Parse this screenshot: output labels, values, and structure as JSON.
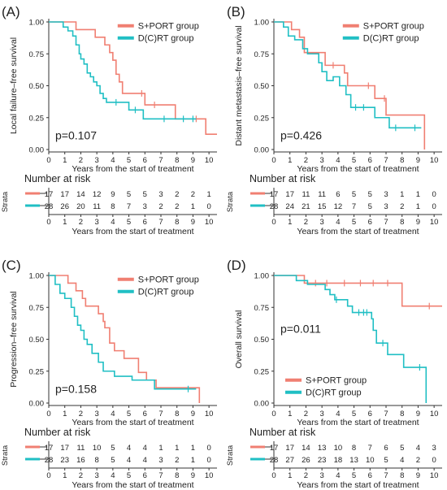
{
  "x_axis_label": "Years from the start of treatment",
  "risk_title": "Number at risk",
  "strata_label": "Strata",
  "colors": {
    "sport": "#F07F72",
    "dcrt": "#20BFC4"
  },
  "chart_data": [
    {
      "panel_label": "(A)",
      "type": "line",
      "ylabel": "Local failure–free survival",
      "pvalue": "p=0.107",
      "legend_position": "top-right",
      "xlim": [
        0,
        10
      ],
      "ylim": [
        0,
        1
      ],
      "x_ticks": [
        0,
        1,
        2,
        3,
        4,
        5,
        6,
        7,
        8,
        9,
        10
      ],
      "y_ticks": [
        "0.00",
        "0.25",
        "0.50",
        "0.75",
        "1.00"
      ],
      "series": [
        {
          "name": "S+PORT group",
          "color_key": "sport",
          "steps": [
            [
              0,
              1.0
            ],
            [
              1.7,
              0.94
            ],
            [
              2.9,
              0.88
            ],
            [
              3.5,
              0.82
            ],
            [
              3.8,
              0.76
            ],
            [
              4.0,
              0.7
            ],
            [
              4.2,
              0.59
            ],
            [
              4.4,
              0.53
            ],
            [
              4.6,
              0.44
            ],
            [
              6.0,
              0.35
            ],
            [
              7.9,
              0.24
            ],
            [
              9.8,
              0.12
            ],
            [
              10.5,
              0.12
            ]
          ],
          "censored": [
            [
              5.8,
              0.44
            ],
            [
              6.6,
              0.35
            ],
            [
              9.2,
              0.24
            ]
          ]
        },
        {
          "name": "D(C)RT group",
          "color_key": "dcrt",
          "steps": [
            [
              0,
              1.0
            ],
            [
              0.9,
              0.96
            ],
            [
              1.2,
              0.93
            ],
            [
              1.5,
              0.89
            ],
            [
              1.7,
              0.82
            ],
            [
              1.9,
              0.75
            ],
            [
              2.0,
              0.71
            ],
            [
              2.2,
              0.67
            ],
            [
              2.4,
              0.6
            ],
            [
              2.6,
              0.57
            ],
            [
              2.8,
              0.53
            ],
            [
              3.0,
              0.5
            ],
            [
              3.2,
              0.44
            ],
            [
              3.4,
              0.4
            ],
            [
              3.6,
              0.37
            ],
            [
              5.0,
              0.31
            ],
            [
              5.9,
              0.24
            ],
            [
              9.2,
              0.24
            ]
          ],
          "censored": [
            [
              4.2,
              0.37
            ],
            [
              5.4,
              0.31
            ],
            [
              7.2,
              0.24
            ],
            [
              8.4,
              0.24
            ],
            [
              9.0,
              0.24
            ]
          ]
        }
      ],
      "risk_table": {
        "x": [
          0,
          1,
          2,
          3,
          4,
          5,
          6,
          7,
          8,
          9,
          10
        ],
        "rows": [
          {
            "color_key": "sport",
            "values": [
              "17",
              "17",
              "14",
              "12",
              "9",
              "5",
              "5",
              "3",
              "2",
              "2",
              "1"
            ]
          },
          {
            "color_key": "dcrt",
            "values": [
              "28",
              "26",
              "20",
              "11",
              "8",
              "7",
              "3",
              "2",
              "2",
              "1",
              "0"
            ]
          }
        ]
      }
    },
    {
      "panel_label": "(B)",
      "type": "line",
      "ylabel": "Distant metastasis–free survival",
      "pvalue": "p=0.426",
      "legend_position": "top-right",
      "xlim": [
        0,
        10
      ],
      "ylim": [
        0,
        1
      ],
      "x_ticks": [
        0,
        1,
        2,
        3,
        4,
        5,
        6,
        7,
        8,
        9,
        10
      ],
      "y_ticks": [
        "0.00",
        "0.25",
        "0.50",
        "0.75",
        "1.00"
      ],
      "series": [
        {
          "name": "S+PORT group",
          "color_key": "sport",
          "steps": [
            [
              0,
              1.0
            ],
            [
              1.1,
              0.94
            ],
            [
              1.6,
              0.88
            ],
            [
              1.9,
              0.76
            ],
            [
              3.2,
              0.66
            ],
            [
              4.4,
              0.6
            ],
            [
              4.6,
              0.5
            ],
            [
              6.3,
              0.4
            ],
            [
              7.0,
              0.27
            ],
            [
              9.4,
              0.0
            ]
          ],
          "censored": [
            [
              3.7,
              0.66
            ],
            [
              5.9,
              0.5
            ],
            [
              6.9,
              0.4
            ]
          ]
        },
        {
          "name": "D(C)RT group",
          "color_key": "dcrt",
          "steps": [
            [
              0,
              1.0
            ],
            [
              0.6,
              0.96
            ],
            [
              0.9,
              0.89
            ],
            [
              1.3,
              0.86
            ],
            [
              1.8,
              0.79
            ],
            [
              2.1,
              0.75
            ],
            [
              2.8,
              0.68
            ],
            [
              3.0,
              0.61
            ],
            [
              3.3,
              0.54
            ],
            [
              3.7,
              0.57
            ],
            [
              4.1,
              0.5
            ],
            [
              4.5,
              0.43
            ],
            [
              4.8,
              0.33
            ],
            [
              6.3,
              0.25
            ],
            [
              7.2,
              0.17
            ],
            [
              9.2,
              0.17
            ]
          ],
          "censored": [
            [
              5.1,
              0.33
            ],
            [
              5.6,
              0.33
            ],
            [
              7.6,
              0.17
            ],
            [
              8.8,
              0.17
            ]
          ]
        }
      ],
      "risk_table": {
        "x": [
          0,
          1,
          2,
          3,
          4,
          5,
          6,
          7,
          8,
          9,
          10
        ],
        "rows": [
          {
            "color_key": "sport",
            "values": [
              "17",
              "17",
              "11",
              "11",
              "6",
              "5",
              "5",
              "3",
              "1",
              "1",
              "0"
            ]
          },
          {
            "color_key": "dcrt",
            "values": [
              "28",
              "24",
              "21",
              "15",
              "12",
              "7",
              "5",
              "3",
              "2",
              "1",
              "0"
            ]
          }
        ]
      }
    },
    {
      "panel_label": "(C)",
      "type": "line",
      "ylabel": "Progression–free survival",
      "pvalue": "p=0.158",
      "legend_position": "top-right",
      "xlim": [
        0,
        10
      ],
      "ylim": [
        0,
        1
      ],
      "x_ticks": [
        0,
        1,
        2,
        3,
        4,
        5,
        6,
        7,
        8,
        9,
        10
      ],
      "y_ticks": [
        "0.00",
        "0.25",
        "0.50",
        "0.75",
        "1.00"
      ],
      "series": [
        {
          "name": "S+PORT group",
          "color_key": "sport",
          "steps": [
            [
              0,
              1.0
            ],
            [
              1.2,
              0.94
            ],
            [
              1.7,
              0.88
            ],
            [
              2.1,
              0.82
            ],
            [
              2.3,
              0.76
            ],
            [
              3.1,
              0.7
            ],
            [
              3.4,
              0.64
            ],
            [
              3.5,
              0.59
            ],
            [
              3.8,
              0.47
            ],
            [
              4.1,
              0.41
            ],
            [
              4.7,
              0.35
            ],
            [
              5.6,
              0.24
            ],
            [
              6.1,
              0.18
            ],
            [
              6.7,
              0.12
            ],
            [
              9.4,
              0.0
            ]
          ],
          "censored": []
        },
        {
          "name": "D(C)RT group",
          "color_key": "dcrt",
          "steps": [
            [
              0,
              1.0
            ],
            [
              0.4,
              0.93
            ],
            [
              0.7,
              0.86
            ],
            [
              1.0,
              0.82
            ],
            [
              1.4,
              0.75
            ],
            [
              1.6,
              0.68
            ],
            [
              1.8,
              0.61
            ],
            [
              2.0,
              0.57
            ],
            [
              2.2,
              0.5
            ],
            [
              2.4,
              0.46
            ],
            [
              2.7,
              0.39
            ],
            [
              3.1,
              0.32
            ],
            [
              3.4,
              0.25
            ],
            [
              4.1,
              0.21
            ],
            [
              5.2,
              0.18
            ],
            [
              6.6,
              0.11
            ],
            [
              9.2,
              0.11
            ]
          ],
          "censored": [
            [
              8.7,
              0.11
            ]
          ]
        }
      ],
      "risk_table": {
        "x": [
          0,
          1,
          2,
          3,
          4,
          5,
          6,
          7,
          8,
          9,
          10
        ],
        "rows": [
          {
            "color_key": "sport",
            "values": [
              "17",
              "17",
              "11",
              "10",
              "5",
              "4",
              "4",
              "1",
              "1",
              "1",
              "0"
            ]
          },
          {
            "color_key": "dcrt",
            "values": [
              "28",
              "23",
              "16",
              "8",
              "5",
              "4",
              "4",
              "3",
              "2",
              "1",
              "0"
            ]
          }
        ]
      }
    },
    {
      "panel_label": "(D)",
      "type": "line",
      "ylabel": "Overall survival",
      "pvalue": "p=0.011",
      "legend_position": "bottom-left",
      "xlim": [
        0,
        10
      ],
      "ylim": [
        0,
        1
      ],
      "x_ticks": [
        0,
        1,
        2,
        3,
        4,
        5,
        6,
        7,
        8,
        9,
        10
      ],
      "y_ticks": [
        "0.00",
        "0.25",
        "0.50",
        "0.75",
        "1.00"
      ],
      "series": [
        {
          "name": "S+PORT group",
          "color_key": "sport",
          "steps": [
            [
              0,
              1.0
            ],
            [
              1.9,
              0.94
            ],
            [
              8.0,
              0.76
            ],
            [
              10.5,
              0.76
            ]
          ],
          "censored": [
            [
              2.6,
              0.94
            ],
            [
              3.3,
              0.94
            ],
            [
              4.4,
              0.94
            ],
            [
              5.4,
              0.94
            ],
            [
              6.2,
              0.94
            ],
            [
              7.1,
              0.94
            ],
            [
              9.7,
              0.76
            ]
          ]
        },
        {
          "name": "D(C)RT group",
          "color_key": "dcrt",
          "steps": [
            [
              0,
              1.0
            ],
            [
              1.4,
              0.96
            ],
            [
              2.1,
              0.93
            ],
            [
              3.2,
              0.89
            ],
            [
              3.5,
              0.85
            ],
            [
              3.8,
              0.81
            ],
            [
              4.6,
              0.76
            ],
            [
              4.9,
              0.71
            ],
            [
              6.1,
              0.66
            ],
            [
              6.2,
              0.57
            ],
            [
              6.4,
              0.47
            ],
            [
              7.1,
              0.38
            ],
            [
              8.1,
              0.28
            ],
            [
              9.5,
              0.0
            ]
          ],
          "censored": [
            [
              3.9,
              0.81
            ],
            [
              5.3,
              0.71
            ],
            [
              5.6,
              0.71
            ],
            [
              5.8,
              0.71
            ],
            [
              6.8,
              0.47
            ],
            [
              9.1,
              0.28
            ]
          ]
        }
      ],
      "risk_table": {
        "x": [
          0,
          1,
          2,
          3,
          4,
          5,
          6,
          7,
          8,
          9,
          10
        ],
        "rows": [
          {
            "color_key": "sport",
            "values": [
              "17",
              "17",
              "14",
              "13",
              "10",
              "8",
              "7",
              "6",
              "5",
              "4",
              "3"
            ]
          },
          {
            "color_key": "dcrt",
            "values": [
              "28",
              "27",
              "26",
              "23",
              "18",
              "13",
              "10",
              "5",
              "4",
              "2",
              "0"
            ]
          }
        ]
      }
    }
  ]
}
